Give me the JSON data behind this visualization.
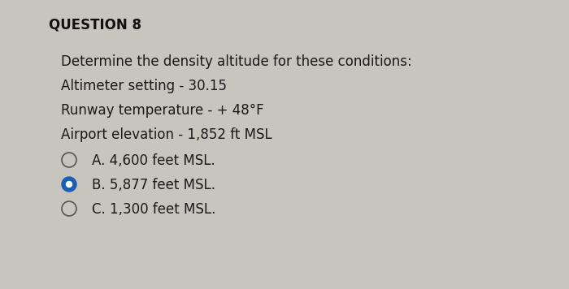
{
  "title": "QUESTION 8",
  "background_color": "#c8c4be",
  "question_text": "Determine the density altitude for these conditions:",
  "conditions": [
    "Altimeter setting - 30.15",
    "Runway temperature - + 48°F",
    "Airport elevation - 1,852 ft MSL"
  ],
  "options": [
    {
      "label": "A.",
      "text": "4,600 feet MSL.",
      "selected": false
    },
    {
      "label": "B.",
      "text": "5,877 feet MSL.",
      "selected": true
    },
    {
      "label": "C.",
      "text": "1,300 feet MSL.",
      "selected": false
    }
  ],
  "title_fontsize": 12,
  "body_fontsize": 12,
  "title_color": "#111111",
  "text_color": "#1a1a1a",
  "selected_circle_fill": "#1a5fb4",
  "selected_circle_inner": "white",
  "unselected_circle_edge": "#555555"
}
